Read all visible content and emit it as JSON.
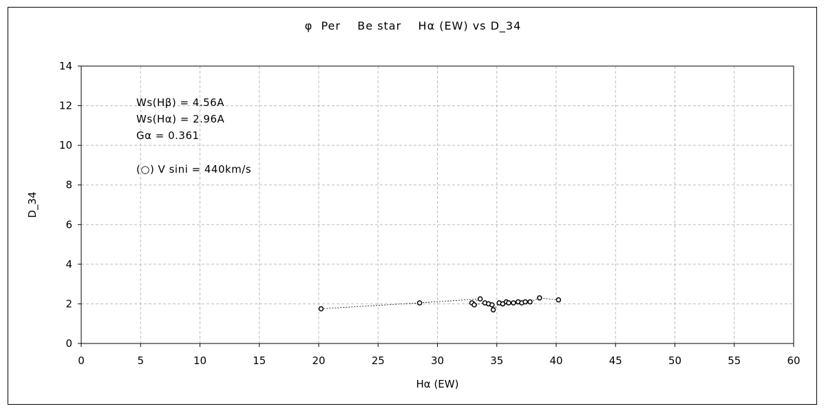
{
  "chart_data": {
    "type": "scatter",
    "title": "φ  Per    Be star    Hα (EW) vs D_34",
    "xlabel": "Hα (EW)",
    "ylabel": "D_34",
    "xlim": [
      0,
      60
    ],
    "ylim": [
      0,
      14
    ],
    "xticks": [
      "0",
      "5",
      "10",
      "15",
      "20",
      "25",
      "30",
      "35",
      "40",
      "45",
      "50",
      "55",
      "60"
    ],
    "yticks": [
      "0",
      "2",
      "4",
      "6",
      "8",
      "10",
      "12",
      "14"
    ],
    "grid": true,
    "annotations": [
      "Ws(Hβ) = 4.56A",
      "Ws(Hα) = 2.96A",
      "Gα = 0.361",
      "(○) V sini = 440km/s"
    ],
    "series": [
      {
        "marker": "open-circle",
        "connected": true,
        "line_style": "dotted",
        "points": [
          [
            20.2,
            1.75
          ],
          [
            28.5,
            2.05
          ],
          [
            33.6,
            2.25
          ],
          [
            32.9,
            2.05
          ],
          [
            33.1,
            1.95
          ],
          [
            34.0,
            2.05
          ],
          [
            34.3,
            2.0
          ],
          [
            34.6,
            1.95
          ],
          [
            34.7,
            1.7
          ],
          [
            35.2,
            2.05
          ],
          [
            35.5,
            2.0
          ],
          [
            35.8,
            2.1
          ],
          [
            36.0,
            2.05
          ],
          [
            36.4,
            2.05
          ],
          [
            36.8,
            2.1
          ],
          [
            37.1,
            2.05
          ],
          [
            37.4,
            2.1
          ],
          [
            37.8,
            2.1
          ],
          [
            38.6,
            2.3
          ],
          [
            40.2,
            2.2
          ]
        ]
      }
    ]
  }
}
